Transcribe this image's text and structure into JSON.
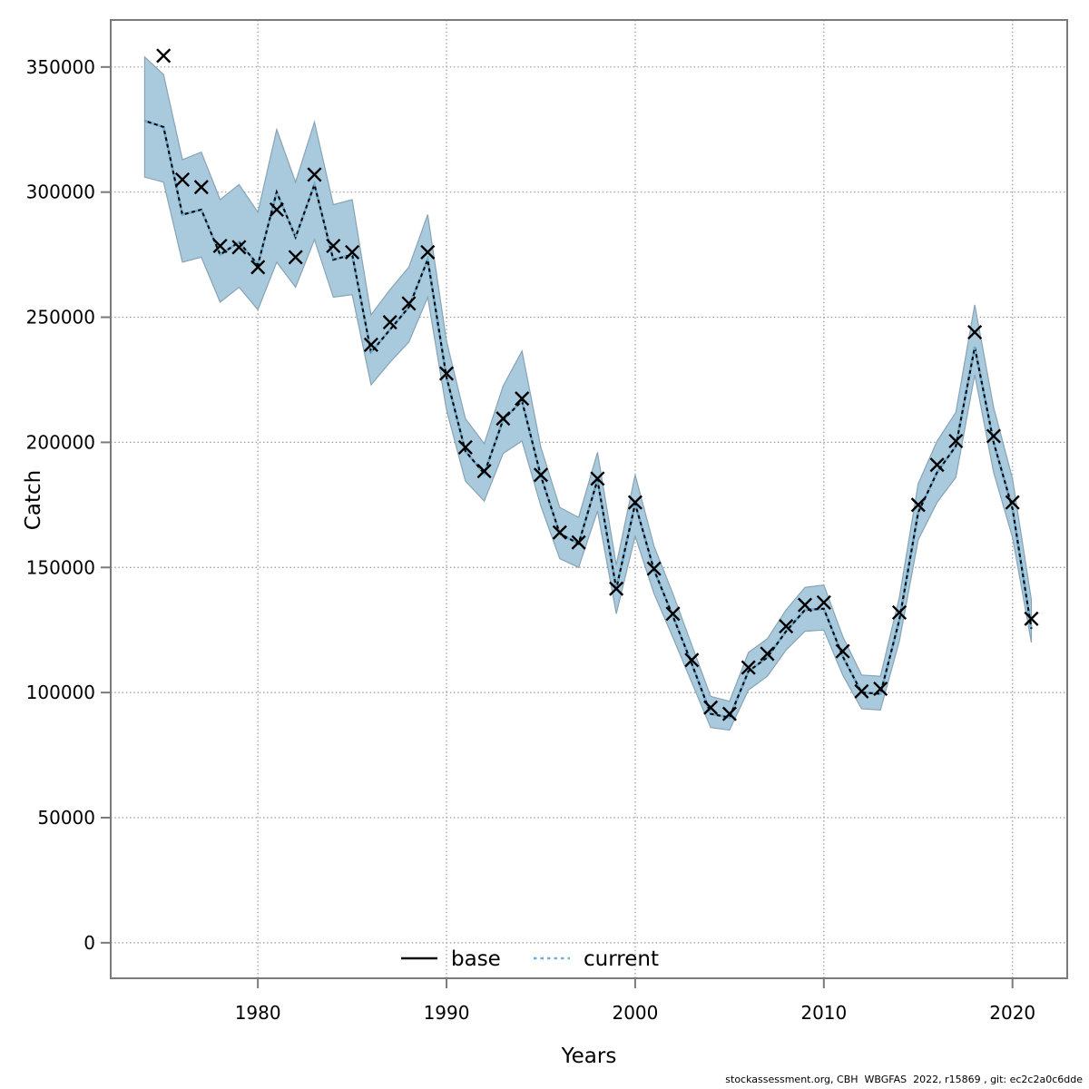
{
  "attribution": "stockassessment.org, CBH  WBGFAS  2022, r15869 , git: ec2c2a0c6dde",
  "chart_data": {
    "type": "line",
    "title": "",
    "xlabel": "Years",
    "ylabel": "Catch",
    "grid": true,
    "legend_position": "bottom-center-inside",
    "x_ticks": [
      1980,
      1990,
      2000,
      2010,
      2020
    ],
    "y_ticks": [
      0,
      50000,
      100000,
      150000,
      200000,
      250000,
      300000,
      350000
    ],
    "x_domain": [
      1972.2,
      2022.9
    ],
    "y_domain": [
      -14200,
      368800
    ],
    "colors": {
      "band": "#a9c9dd",
      "band_edge": "#87a4b5",
      "base_line": "#0a0a0a",
      "current_line": "#6cb0d8",
      "grid": "#999999",
      "axis": "#7a7a7a",
      "marker": "#000000",
      "text": "#000000"
    },
    "years": [
      1974,
      1975,
      1976,
      1977,
      1978,
      1979,
      1980,
      1981,
      1982,
      1983,
      1984,
      1985,
      1986,
      1987,
      1988,
      1989,
      1990,
      1991,
      1992,
      1993,
      1994,
      1995,
      1996,
      1997,
      1998,
      1999,
      2000,
      2001,
      2002,
      2003,
      2004,
      2005,
      2006,
      2007,
      2008,
      2009,
      2010,
      2011,
      2012,
      2013,
      2014,
      2015,
      2016,
      2017,
      2018,
      2019,
      2020,
      2021
    ],
    "series": [
      {
        "name": "base",
        "style": "solid",
        "color": "#0a0a0a",
        "values": [
          328500,
          326000,
          291000,
          293000,
          275000,
          280000,
          271000,
          300000,
          282000,
          303000,
          273000,
          275000,
          236000,
          245000,
          254000,
          273000,
          226000,
          196500,
          187500,
          209000,
          216500,
          186500,
          163500,
          159500,
          185000,
          141500,
          175500,
          149000,
          130500,
          111500,
          91500,
          90000,
          108500,
          114000,
          124500,
          133000,
          133500,
          114500,
          100000,
          99500,
          129000,
          172000,
          188000,
          198500,
          238000,
          200000,
          173500,
          125500
        ]
      },
      {
        "name": "current",
        "style": "dotted",
        "color": "#6cb0d8",
        "values": [
          328500,
          326000,
          291000,
          293000,
          275000,
          280000,
          271000,
          300000,
          282000,
          303000,
          273000,
          275000,
          236000,
          245000,
          254000,
          273000,
          226000,
          196500,
          187500,
          209000,
          216500,
          186500,
          163500,
          159500,
          185000,
          141500,
          175500,
          149000,
          130500,
          111500,
          91500,
          90000,
          108500,
          114000,
          124500,
          133000,
          133500,
          114500,
          100000,
          99500,
          129000,
          172000,
          188000,
          198500,
          238000,
          200000,
          173500,
          125500
        ],
        "ci_lo": [
          306000,
          304000,
          272000,
          274000,
          256000,
          262000,
          253000,
          272000,
          262000,
          281000,
          258000,
          259000,
          223000,
          232000,
          240000,
          258000,
          213000,
          184500,
          176500,
          195500,
          200500,
          174500,
          153500,
          150000,
          172500,
          131500,
          162500,
          139500,
          122000,
          104000,
          86000,
          85000,
          101000,
          106500,
          117000,
          124500,
          125000,
          107000,
          93500,
          93000,
          120500,
          161000,
          176000,
          186000,
          227000,
          188000,
          162000,
          120000
        ],
        "ci_hi": [
          354000,
          347000,
          313000,
          316000,
          297000,
          303000,
          292000,
          325000,
          304000,
          328000,
          295000,
          297000,
          251000,
          261000,
          270000,
          291000,
          240500,
          209500,
          199500,
          222500,
          236500,
          198000,
          174000,
          170000,
          196000,
          151000,
          187000,
          158500,
          139500,
          119000,
          98500,
          96500,
          116000,
          121500,
          133000,
          142000,
          143000,
          122500,
          107000,
          106500,
          138000,
          183500,
          200500,
          212000,
          255000,
          214000,
          185500,
          137000
        ]
      }
    ],
    "observed_catches": {
      "symbol": "x",
      "years": [
        1975,
        1976,
        1977,
        1978,
        1979,
        1980,
        1981,
        1982,
        1983,
        1984,
        1985,
        1986,
        1987,
        1988,
        1989,
        1990,
        1991,
        1992,
        1993,
        1994,
        1995,
        1996,
        1997,
        1998,
        1999,
        2000,
        2001,
        2002,
        2003,
        2004,
        2005,
        2006,
        2007,
        2008,
        2009,
        2010,
        2011,
        2012,
        2013,
        2014,
        2015,
        2016,
        2017,
        2018,
        2019,
        2020,
        2021
      ],
      "values": [
        354500,
        305000,
        302000,
        278500,
        278000,
        270000,
        293000,
        274000,
        307000,
        278500,
        276000,
        239000,
        248000,
        255500,
        276000,
        227500,
        198000,
        188500,
        209500,
        217500,
        187000,
        164000,
        160000,
        185500,
        141500,
        176000,
        149500,
        131500,
        113000,
        94000,
        91500,
        110000,
        115500,
        126500,
        135000,
        136000,
        116500,
        100500,
        101500,
        132000,
        175000,
        191000,
        200500,
        244000,
        202500,
        176000,
        129500
      ]
    }
  }
}
